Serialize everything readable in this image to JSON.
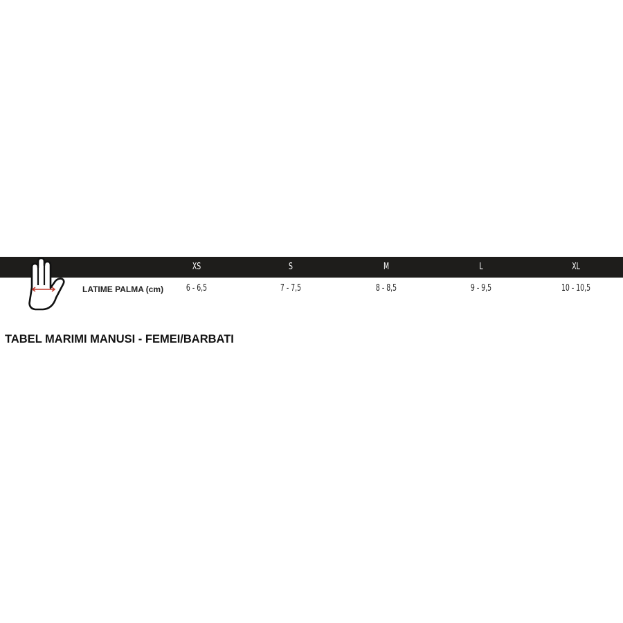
{
  "table": {
    "sizes": [
      "XS",
      "S",
      "M",
      "L",
      "XL"
    ],
    "row_label": "LATIME PALMA (cm)",
    "values": [
      "6 - 6,5",
      "7 - 7,5",
      "8 - 8,5",
      "9 - 9,5",
      "10 - 10,5"
    ]
  },
  "title": "TABEL MARIMI MANUSI - FEMEI/BARBATI",
  "icons": {
    "hand": "hand-palm-width-icon"
  },
  "colors": {
    "header_bg": "#1e1d1b",
    "arrow": "#c0392b"
  }
}
